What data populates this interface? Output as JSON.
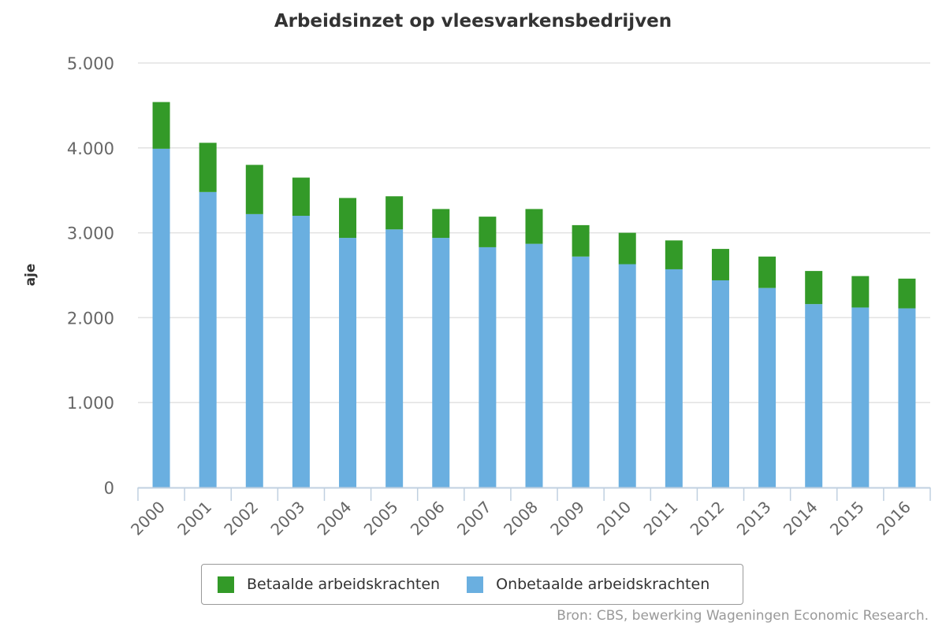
{
  "chart_data": {
    "type": "bar",
    "stacked": true,
    "title": "Arbeidsinzet op vleesvarkensbedrijven",
    "xlabel": "",
    "ylabel": "aje",
    "ylim": [
      0,
      5000
    ],
    "yticks": [
      0,
      1000,
      2000,
      3000,
      4000,
      5000
    ],
    "ytick_labels": [
      "0",
      "1.000",
      "2.000",
      "3.000",
      "4.000",
      "5.000"
    ],
    "categories": [
      "2000",
      "2001",
      "2002",
      "2003",
      "2004",
      "2005",
      "2006",
      "2007",
      "2008",
      "2009",
      "2010",
      "2011",
      "2012",
      "2013",
      "2014",
      "2015",
      "2016"
    ],
    "series": [
      {
        "name": "Onbetaalde arbeidskrachten",
        "color": "#6aafe0",
        "values": [
          3990,
          3480,
          3220,
          3200,
          2940,
          3040,
          2940,
          2830,
          2870,
          2720,
          2630,
          2570,
          2440,
          2350,
          2160,
          2120,
          2110
        ]
      },
      {
        "name": "Betaalde arbeidskrachten",
        "color": "#339a28",
        "values": [
          550,
          580,
          580,
          450,
          470,
          390,
          340,
          360,
          410,
          370,
          370,
          340,
          370,
          370,
          390,
          370,
          350
        ]
      }
    ],
    "legend": {
      "position": "bottom",
      "order": [
        "Betaalde arbeidskrachten",
        "Onbetaalde arbeidskrachten"
      ]
    },
    "grid": true
  },
  "source": "Bron: CBS, bewerking Wageningen Economic Research."
}
